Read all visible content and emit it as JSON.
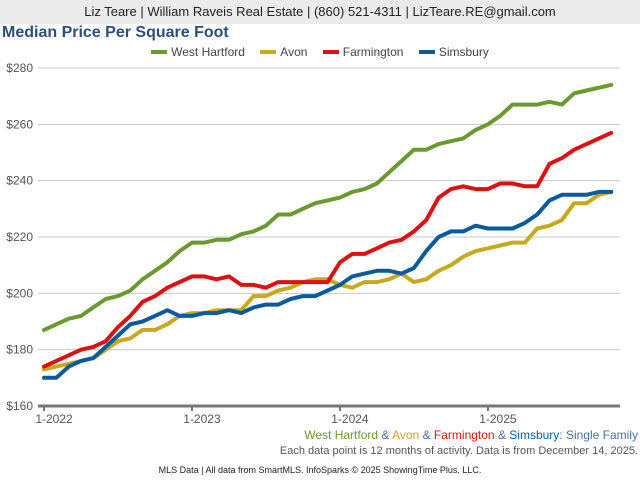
{
  "header": {
    "contact": "Liz Teare | William Raveis Real Estate | (860) 521-4311 | LizTeare.RE@gmail.com"
  },
  "chart_data": {
    "type": "line",
    "title": "Median Price Per Square Foot",
    "xlabel": "",
    "ylabel": "",
    "ylim": [
      160,
      280
    ],
    "yticks": [
      160,
      180,
      200,
      220,
      240,
      260,
      280
    ],
    "ytick_labels": [
      "$160",
      "$180",
      "$200",
      "$220",
      "$240",
      "$260",
      "$280"
    ],
    "xtick_labels": [
      "1-2022",
      "1-2023",
      "1-2024",
      "1-2025"
    ],
    "xtick_indices": [
      0,
      12,
      24,
      36
    ],
    "x_start": "1-2022",
    "x_end": "11-2025",
    "grid": true,
    "legend_position": "top-center",
    "series": [
      {
        "name": "West Hartford",
        "color": "#6a9a2f",
        "values": [
          187,
          189,
          191,
          192,
          195,
          198,
          199,
          201,
          205,
          208,
          211,
          215,
          218,
          218,
          219,
          219,
          221,
          222,
          224,
          228,
          228,
          230,
          232,
          233,
          234,
          236,
          237,
          239,
          243,
          247,
          251,
          251,
          253,
          254,
          255,
          258,
          260,
          263,
          267,
          267,
          267,
          268,
          267,
          271,
          272,
          273,
          274
        ]
      },
      {
        "name": "Avon",
        "color": "#c8a81e",
        "values": [
          173,
          174,
          175,
          176,
          177,
          180,
          183,
          184,
          187,
          187,
          189,
          192,
          193,
          193,
          194,
          194,
          194,
          199,
          199,
          201,
          202,
          204,
          205,
          205,
          203,
          202,
          204,
          204,
          205,
          207,
          204,
          205,
          208,
          210,
          213,
          215,
          216,
          217,
          218,
          218,
          223,
          224,
          226,
          232,
          232,
          235,
          236
        ]
      },
      {
        "name": "Farmington",
        "color": "#dd1111",
        "values": [
          174,
          176,
          178,
          180,
          181,
          183,
          188,
          192,
          197,
          199,
          202,
          204,
          206,
          206,
          205,
          206,
          203,
          203,
          202,
          204,
          204,
          204,
          204,
          204,
          211,
          214,
          214,
          216,
          218,
          219,
          222,
          226,
          234,
          237,
          238,
          237,
          237,
          239,
          239,
          238,
          238,
          246,
          248,
          251,
          253,
          255,
          257
        ]
      },
      {
        "name": "Simsbury",
        "color": "#0a5aa0",
        "values": [
          170,
          170,
          174,
          176,
          177,
          181,
          185,
          189,
          190,
          192,
          194,
          192,
          192,
          193,
          193,
          194,
          193,
          195,
          196,
          196,
          198,
          199,
          199,
          201,
          203,
          206,
          207,
          208,
          208,
          207,
          209,
          215,
          220,
          222,
          222,
          224,
          223,
          223,
          223,
          225,
          228,
          233,
          235,
          235,
          235,
          236,
          236
        ]
      }
    ],
    "subtitle_parts": [
      {
        "text": "West Hartford",
        "color": "#6a9a2f"
      },
      {
        "text": " & ",
        "color": "#4a6fa5"
      },
      {
        "text": "Avon",
        "color": "#c8a81e"
      },
      {
        "text": " & ",
        "color": "#4a6fa5"
      },
      {
        "text": "Farmington",
        "color": "#dd1111"
      },
      {
        "text": " & ",
        "color": "#4a6fa5"
      },
      {
        "text": "Simsbury",
        "color": "#0a5aa0"
      },
      {
        "text": ": Single Family",
        "color": "#4a6fa5"
      }
    ]
  },
  "notes": {
    "activity": "Each data point is 12 months of activity. Data is from December 14, 2025.",
    "footer": "MLS Data | All data from SmartMLS. InfoSparks © 2025 ShowingTime Plus, LLC."
  }
}
